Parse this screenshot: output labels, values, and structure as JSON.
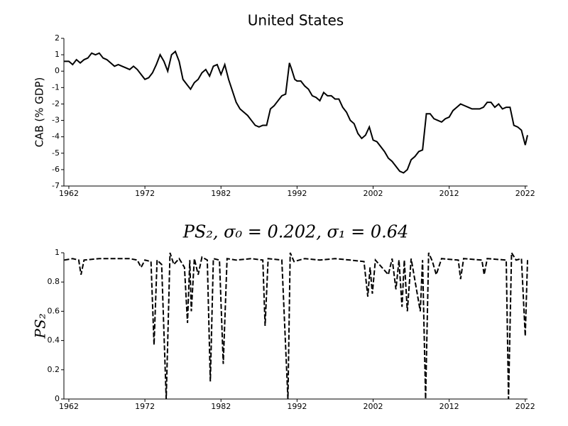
{
  "chart_data": [
    {
      "type": "line",
      "title": "United States",
      "ylabel": "CAB (% GDP)",
      "xlim": [
        1961.35,
        2022.3
      ],
      "xticks": [
        1962,
        1972,
        1982,
        1992,
        2002,
        2012,
        2022
      ],
      "ylim": [
        -7,
        2
      ],
      "yticks": [
        -7,
        -6,
        -5,
        -4,
        -3,
        -2,
        -1,
        0,
        1,
        2
      ],
      "line_style": "solid",
      "series": [
        {
          "color": "#000000",
          "x": [
            1961.4,
            1962,
            1962.5,
            1963,
            1963.5,
            1964,
            1964.5,
            1965,
            1965.5,
            1966,
            1966.5,
            1967,
            1967.5,
            1968,
            1968.5,
            1969,
            1969.5,
            1970,
            1970.5,
            1971,
            1971.5,
            1972,
            1972.5,
            1973,
            1973.5,
            1974,
            1974.5,
            1975,
            1975.5,
            1976,
            1976.5,
            1977,
            1977.5,
            1978,
            1978.5,
            1979,
            1979.5,
            1980,
            1980.5,
            1981,
            1981.5,
            1982,
            1982.5,
            1983,
            1983.5,
            1984,
            1984.5,
            1985,
            1985.5,
            1986,
            1986.5,
            1987,
            1987.5,
            1988,
            1988.5,
            1989,
            1989.5,
            1990,
            1990.5,
            1991,
            1991.3,
            1991.7,
            1992,
            1992.5,
            1993,
            1993.5,
            1994,
            1994.5,
            1995,
            1995.5,
            1996,
            1996.5,
            1997,
            1997.5,
            1998,
            1998.5,
            1999,
            1999.5,
            2000,
            2000.5,
            2001,
            2001.5,
            2002,
            2002.5,
            2003,
            2003.5,
            2004,
            2004.5,
            2005,
            2005.5,
            2006,
            2006.5,
            2007,
            2007.5,
            2008,
            2008.5,
            2009,
            2009.5,
            2010,
            2010.5,
            2011,
            2011.5,
            2012,
            2012.5,
            2013,
            2013.5,
            2014,
            2014.5,
            2015,
            2015.5,
            2016,
            2016.5,
            2017,
            2017.5,
            2018,
            2018.5,
            2019,
            2019.5,
            2020,
            2020.5,
            2021,
            2021.5,
            2022,
            2022.3
          ],
          "values": [
            0.6,
            0.6,
            0.4,
            0.7,
            0.5,
            0.7,
            0.8,
            1.1,
            1.0,
            1.1,
            0.8,
            0.7,
            0.5,
            0.3,
            0.4,
            0.3,
            0.2,
            0.1,
            0.3,
            0.1,
            -0.2,
            -0.5,
            -0.4,
            -0.1,
            0.4,
            1.0,
            0.6,
            0.0,
            1.0,
            1.2,
            0.6,
            -0.5,
            -0.8,
            -1.1,
            -0.7,
            -0.5,
            -0.1,
            0.1,
            -0.3,
            0.3,
            0.4,
            -0.2,
            0.4,
            -0.5,
            -1.2,
            -1.9,
            -2.3,
            -2.5,
            -2.7,
            -3.0,
            -3.3,
            -3.4,
            -3.3,
            -3.3,
            -2.3,
            -2.1,
            -1.8,
            -1.5,
            -1.4,
            0.5,
            0.1,
            -0.5,
            -0.6,
            -0.6,
            -0.9,
            -1.1,
            -1.5,
            -1.6,
            -1.8,
            -1.3,
            -1.5,
            -1.5,
            -1.7,
            -1.7,
            -2.2,
            -2.5,
            -3.0,
            -3.2,
            -3.8,
            -4.1,
            -3.9,
            -3.4,
            -4.2,
            -4.3,
            -4.6,
            -4.9,
            -5.3,
            -5.5,
            -5.8,
            -6.1,
            -6.2,
            -6.0,
            -5.4,
            -5.2,
            -4.9,
            -4.8,
            -2.6,
            -2.6,
            -2.9,
            -3.0,
            -3.1,
            -2.9,
            -2.8,
            -2.4,
            -2.2,
            -2.0,
            -2.1,
            -2.2,
            -2.3,
            -2.3,
            -2.3,
            -2.2,
            -1.9,
            -1.9,
            -2.2,
            -2.0,
            -2.3,
            -2.2,
            -2.2,
            -3.3,
            -3.4,
            -3.6,
            -4.5,
            -3.9
          ]
        }
      ]
    },
    {
      "type": "line",
      "title": "PS₂, σ₀ = 0.202, σ₁ = 0.64",
      "ylabel": "PS₂",
      "xlim": [
        1961.35,
        2022.3
      ],
      "xticks": [
        1962,
        1972,
        1982,
        1992,
        2002,
        2012,
        2022
      ],
      "ylim": [
        0,
        1
      ],
      "yticks": [
        0,
        0.2,
        0.4,
        0.6,
        0.8,
        1
      ],
      "line_style": "dashed",
      "series": [
        {
          "color": "#000000",
          "x": [
            1961.4,
            1962.5,
            1963.3,
            1963.6,
            1964,
            1966,
            1968,
            1970,
            1971,
            1971.5,
            1972,
            1972.8,
            1973.2,
            1973.6,
            1974.2,
            1974.8,
            1975.3,
            1975.8,
            1976.5,
            1977.2,
            1977.6,
            1977.9,
            1978.1,
            1978.5,
            1979,
            1979.5,
            1980.2,
            1980.6,
            1981,
            1981.8,
            1982.3,
            1982.8,
            1984,
            1986,
            1987.5,
            1987.8,
            1988.2,
            1990,
            1990.8,
            1991.1,
            1991.6,
            1993,
            1995,
            1997,
            1999,
            2000.8,
            2001.3,
            2001.6,
            2001.9,
            2002.3,
            2004,
            2004.5,
            2005,
            2005.4,
            2005.8,
            2006.1,
            2006.5,
            2007,
            2008.2,
            2008.5,
            2008.9,
            2009.3,
            2009.8,
            2010.3,
            2011,
            2013.2,
            2013.5,
            2013.9,
            2016.3,
            2016.6,
            2017,
            2019.5,
            2019.8,
            2020.2,
            2020.8,
            2021.5,
            2022,
            2022.3
          ],
          "values": [
            0.95,
            0.96,
            0.95,
            0.85,
            0.95,
            0.96,
            0.96,
            0.96,
            0.95,
            0.9,
            0.95,
            0.94,
            0.37,
            0.95,
            0.92,
            0.0,
            1.0,
            0.92,
            0.96,
            0.9,
            0.52,
            0.95,
            0.6,
            0.96,
            0.85,
            0.97,
            0.95,
            0.12,
            0.96,
            0.95,
            0.24,
            0.96,
            0.95,
            0.96,
            0.95,
            0.5,
            0.96,
            0.95,
            0.0,
            1.0,
            0.94,
            0.96,
            0.95,
            0.96,
            0.95,
            0.94,
            0.7,
            0.9,
            0.72,
            0.95,
            0.85,
            0.96,
            0.75,
            0.95,
            0.63,
            0.95,
            0.6,
            0.96,
            0.6,
            0.95,
            0.0,
            1.0,
            0.94,
            0.85,
            0.96,
            0.95,
            0.82,
            0.96,
            0.95,
            0.85,
            0.96,
            0.95,
            0.0,
            1.0,
            0.95,
            0.96,
            0.43,
            0.95
          ]
        }
      ]
    }
  ]
}
